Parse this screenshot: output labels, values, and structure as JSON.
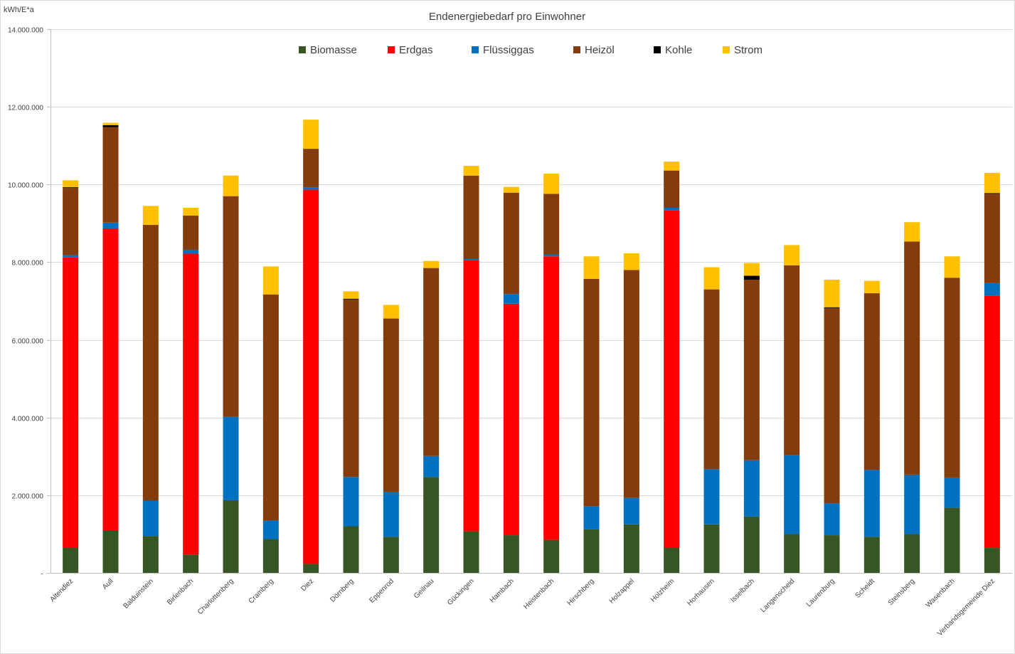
{
  "chart_data": {
    "type": "bar",
    "stacked": true,
    "title": "Endenergiebedarf pro Einwohner",
    "ylabel": "kWh/E*a",
    "xlabel": "",
    "ylim": [
      0,
      14000000
    ],
    "yticks": [
      0,
      2000000,
      4000000,
      6000000,
      8000000,
      10000000,
      12000000,
      14000000
    ],
    "ytick_labels": [
      "-",
      "2.000.000",
      "4.000.000",
      "6.000.000",
      "8.000.000",
      "10.000.000",
      "12.000.000",
      "14.000.000"
    ],
    "grid": true,
    "legend_position": "top",
    "categories": [
      "Altendiez",
      "Aull",
      "Balduinstein",
      "Birlenbach",
      "Charlottenberg",
      "Cramberg",
      "Diez",
      "Dörnberg",
      "Eppenrod",
      "Geilnau",
      "Gückingen",
      "Hambach",
      "Heistenbach",
      "Hirschberg",
      "Holzappel",
      "Holzheim",
      "Horhausen",
      "Isselbach",
      "Langenscheid",
      "Laurenburg",
      "Scheidt",
      "Steinsberg",
      "Wasenbach",
      "Verbandsgemeinde Diez"
    ],
    "series": [
      {
        "name": "Biomasse",
        "color": "#375623",
        "values": [
          650000,
          1100000,
          950000,
          470000,
          1870000,
          870000,
          230000,
          1200000,
          930000,
          2470000,
          1070000,
          970000,
          850000,
          1120000,
          1250000,
          650000,
          1250000,
          1450000,
          1000000,
          970000,
          930000,
          1000000,
          1680000,
          640000
        ]
      },
      {
        "name": "Erdgas",
        "color": "#ff0000",
        "values": [
          7470000,
          7770000,
          0,
          7750000,
          0,
          0,
          9640000,
          0,
          0,
          0,
          6990000,
          5960000,
          7300000,
          0,
          0,
          8690000,
          0,
          0,
          0,
          0,
          0,
          0,
          0,
          6500000
        ]
      },
      {
        "name": "Flüssiggas",
        "color": "#0070c0",
        "values": [
          60000,
          150000,
          910000,
          100000,
          2150000,
          470000,
          60000,
          1270000,
          1160000,
          540000,
          30000,
          250000,
          50000,
          590000,
          680000,
          60000,
          1420000,
          1450000,
          2030000,
          820000,
          1720000,
          1530000,
          760000,
          320000
        ]
      },
      {
        "name": "Heizöl",
        "color": "#843c0c",
        "values": [
          1730000,
          2460000,
          7100000,
          880000,
          5680000,
          5830000,
          990000,
          4570000,
          4460000,
          4840000,
          2140000,
          2610000,
          1560000,
          5860000,
          5870000,
          960000,
          4630000,
          4650000,
          4890000,
          5030000,
          4550000,
          6000000,
          5160000,
          2300000
        ]
      },
      {
        "name": "Kohle",
        "color": "#000000",
        "values": [
          20000,
          50000,
          0,
          0,
          0,
          0,
          0,
          20000,
          0,
          0,
          0,
          0,
          0,
          0,
          0,
          0,
          0,
          100000,
          0,
          20000,
          0,
          0,
          0,
          20000
        ]
      },
      {
        "name": "Strom",
        "color": "#ffc000",
        "values": [
          180000,
          60000,
          490000,
          200000,
          530000,
          720000,
          750000,
          190000,
          350000,
          180000,
          250000,
          150000,
          520000,
          580000,
          430000,
          230000,
          570000,
          330000,
          520000,
          710000,
          320000,
          500000,
          550000,
          520000
        ]
      }
    ]
  }
}
